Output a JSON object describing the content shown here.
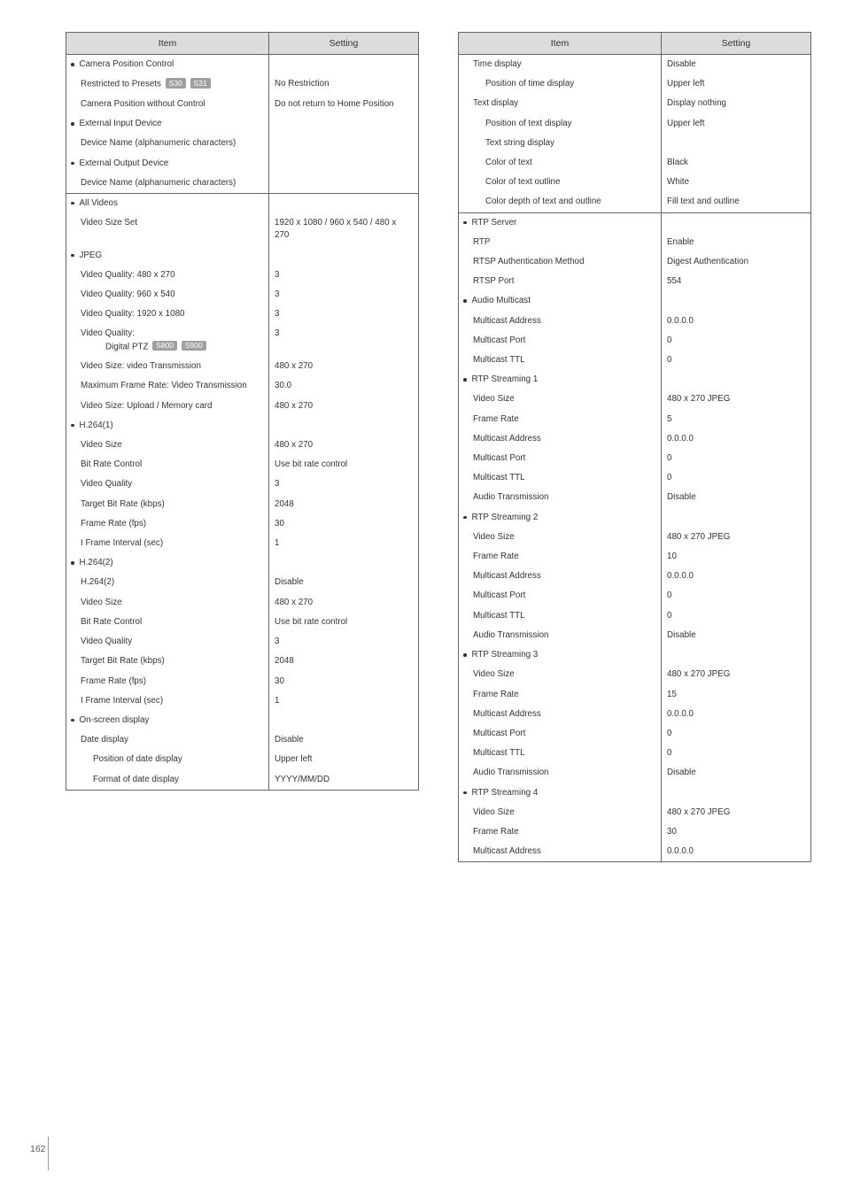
{
  "headers": {
    "item": "Item",
    "setting": "Setting"
  },
  "pageNumber": "162",
  "groups_left": [
    {
      "header": "Camera Position Control",
      "rows": [
        {
          "item_pre": "Restricted to Presets ",
          "tags": [
            "S30",
            "S31"
          ],
          "item_post": "",
          "setting": "No Restriction",
          "indent": 1
        },
        {
          "item": "Camera Position without Control",
          "setting": "Do not return to Home Position",
          "indent": 1
        }
      ]
    },
    {
      "header": "External Input Device",
      "rows": [
        {
          "item": "Device Name (alphanumeric characters)",
          "setting": "",
          "indent": 1
        }
      ]
    },
    {
      "header": "External Output Device",
      "rows": [
        {
          "item": "Device Name (alphanumeric characters)",
          "setting": "",
          "indent": 1
        }
      ]
    },
    {
      "header": "All Videos",
      "rows": [
        {
          "item": "Video Size Set",
          "setting": "1920 x 1080 / 960 x 540 / 480 x 270",
          "indent": 1
        }
      ],
      "divider": true
    },
    {
      "header": "JPEG",
      "rows": [
        {
          "item": "Video Quality: 480 x 270",
          "setting": "3",
          "indent": 1
        },
        {
          "item": "Video Quality: 960 x 540",
          "setting": "3",
          "indent": 1
        },
        {
          "item": "Video Quality: 1920 x 1080",
          "setting": "3",
          "indent": 1
        },
        {
          "item_line1": "Video Quality:",
          "item_line2_pre": "Digital PTZ ",
          "tags": [
            "S800",
            "S900"
          ],
          "setting": "3",
          "indent": 1,
          "twoLineTag": true
        },
        {
          "item": "Video Size: video Transmission",
          "setting": "480 x 270",
          "indent": 1
        },
        {
          "item": "Maximum Frame Rate: Video Transmission",
          "setting": "30.0",
          "indent": 1
        },
        {
          "item": "Video Size: Upload / Memory card",
          "setting": "480 x 270",
          "indent": 1
        }
      ]
    },
    {
      "header": "H.264(1)",
      "rows": [
        {
          "item": "Video Size",
          "setting": "480 x 270",
          "indent": 1
        },
        {
          "item": "Bit Rate Control",
          "setting": "Use bit rate control",
          "indent": 1
        },
        {
          "item": "Video Quality",
          "setting": "3",
          "indent": 1
        },
        {
          "item": "Target Bit Rate (kbps)",
          "setting": "2048",
          "indent": 1
        },
        {
          "item": "Frame Rate (fps)",
          "setting": "30",
          "indent": 1
        },
        {
          "item": "I Frame Interval (sec)",
          "setting": "1",
          "indent": 1
        }
      ]
    },
    {
      "header": "H.264(2)",
      "rows": [
        {
          "item": "H.264(2)",
          "setting": "Disable",
          "indent": 1
        },
        {
          "item": "Video Size",
          "setting": "480 x 270",
          "indent": 1
        },
        {
          "item": "Bit Rate Control",
          "setting": "Use bit rate control",
          "indent": 1
        },
        {
          "item": "Video Quality",
          "setting": "3",
          "indent": 1
        },
        {
          "item": "Target Bit Rate (kbps)",
          "setting": "2048",
          "indent": 1
        },
        {
          "item": "Frame Rate (fps)",
          "setting": "30",
          "indent": 1
        },
        {
          "item": "I Frame Interval (sec)",
          "setting": "1",
          "indent": 1
        }
      ]
    },
    {
      "header": "On-screen display",
      "rows": [
        {
          "item": "Date display",
          "setting": "Disable",
          "indent": 1
        },
        {
          "item": "Position of date display",
          "setting": "Upper left",
          "indent": 2
        },
        {
          "item": "Format of date display",
          "setting": "YYYY/MM/DD",
          "indent": 2
        }
      ]
    }
  ],
  "groups_right": [
    {
      "continued": true,
      "rows": [
        {
          "item": "Time display",
          "setting": "Disable",
          "indent": 1
        },
        {
          "item": "Position of time display",
          "setting": "Upper left",
          "indent": 2
        },
        {
          "item": "Text display",
          "setting": "Display nothing",
          "indent": 1
        },
        {
          "item": "Position of text display",
          "setting": "Upper left",
          "indent": 2
        },
        {
          "item": "Text string display",
          "setting": "",
          "indent": 2
        },
        {
          "item": "Color of text",
          "setting": "Black",
          "indent": 2
        },
        {
          "item": "Color of text outline",
          "setting": "White",
          "indent": 2
        },
        {
          "item": "Color depth of text and outline",
          "setting": "Fill text and outline",
          "indent": 2
        }
      ]
    },
    {
      "header": "RTP Server",
      "rows": [
        {
          "item": "RTP",
          "setting": "Enable",
          "indent": 1
        },
        {
          "item": "RTSP Authentication Method",
          "setting": "Digest Authentication",
          "indent": 1
        },
        {
          "item": "RTSP Port",
          "setting": "554",
          "indent": 1
        }
      ],
      "divider": true
    },
    {
      "header": "Audio Multicast",
      "rows": [
        {
          "item": "Multicast Address",
          "setting": "0.0.0.0",
          "indent": 1
        },
        {
          "item": "Multicast Port",
          "setting": "0",
          "indent": 1
        },
        {
          "item": "Multicast TTL",
          "setting": "0",
          "indent": 1
        }
      ]
    },
    {
      "header": "RTP Streaming 1",
      "rows": [
        {
          "item": "Video Size",
          "setting": "480 x 270 JPEG",
          "indent": 1
        },
        {
          "item": "Frame Rate",
          "setting": "5",
          "indent": 1
        },
        {
          "item": "Multicast Address",
          "setting": "0.0.0.0",
          "indent": 1
        },
        {
          "item": "Multicast Port",
          "setting": "0",
          "indent": 1
        },
        {
          "item": "Multicast TTL",
          "setting": "0",
          "indent": 1
        },
        {
          "item": "Audio Transmission",
          "setting": "Disable",
          "indent": 1
        }
      ]
    },
    {
      "header": "RTP Streaming 2",
      "rows": [
        {
          "item": "Video Size",
          "setting": "480 x 270 JPEG",
          "indent": 1
        },
        {
          "item": "Frame Rate",
          "setting": "10",
          "indent": 1
        },
        {
          "item": "Multicast Address",
          "setting": "0.0.0.0",
          "indent": 1
        },
        {
          "item": "Multicast Port",
          "setting": "0",
          "indent": 1
        },
        {
          "item": "Multicast TTL",
          "setting": "0",
          "indent": 1
        },
        {
          "item": "Audio Transmission",
          "setting": "Disable",
          "indent": 1
        }
      ]
    },
    {
      "header": "RTP Streaming 3",
      "rows": [
        {
          "item": "Video Size",
          "setting": "480 x 270 JPEG",
          "indent": 1
        },
        {
          "item": "Frame Rate",
          "setting": "15",
          "indent": 1
        },
        {
          "item": "Multicast Address",
          "setting": "0.0.0.0",
          "indent": 1
        },
        {
          "item": "Multicast Port",
          "setting": "0",
          "indent": 1
        },
        {
          "item": "Multicast TTL",
          "setting": "0",
          "indent": 1
        },
        {
          "item": "Audio Transmission",
          "setting": "Disable",
          "indent": 1
        }
      ]
    },
    {
      "header": "RTP Streaming 4",
      "rows": [
        {
          "item": "Video Size",
          "setting": "480 x 270 JPEG",
          "indent": 1
        },
        {
          "item": "Frame Rate",
          "setting": "30",
          "indent": 1
        },
        {
          "item": "Multicast Address",
          "setting": "0.0.0.0",
          "indent": 1
        }
      ]
    }
  ]
}
